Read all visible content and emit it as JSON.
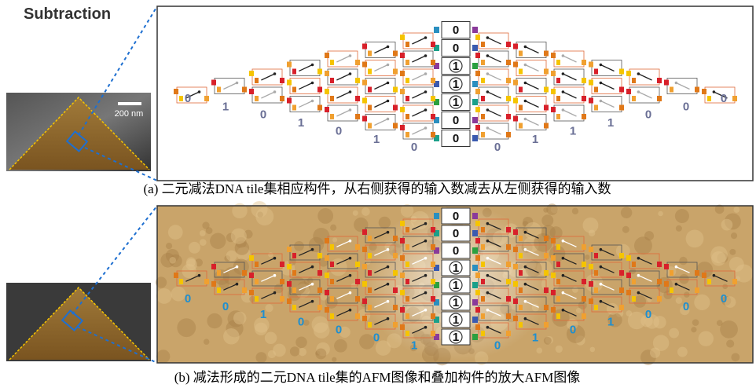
{
  "panel_a": {
    "label": "Subtraction",
    "scale_bar": "200 nm",
    "center_digits": [
      "0",
      "0",
      "1",
      "1",
      "1",
      "0",
      "0"
    ],
    "left_digits": [
      "0",
      "1",
      "0",
      "1",
      "0",
      "1",
      "0"
    ],
    "right_digits": [
      "0",
      "1",
      "1",
      "1",
      "0",
      "0",
      "0"
    ],
    "caption": "(a) 二元减法DNA tile集相应构件，从右侧获得的输入数减去从左侧获得的输入数"
  },
  "panel_b": {
    "center_digits": [
      "0",
      "0",
      "0",
      "1",
      "1",
      "1",
      "1",
      "1"
    ],
    "left_digits": [
      "0",
      "0",
      "1",
      "0",
      "0",
      "0",
      "1"
    ],
    "right_digits": [
      "0",
      "1",
      "0",
      "1",
      "0",
      "0",
      "0"
    ],
    "caption": "(b) 减法形成的二元DNA tile集的AFM图像和叠加构件的放大AFM图像"
  }
}
